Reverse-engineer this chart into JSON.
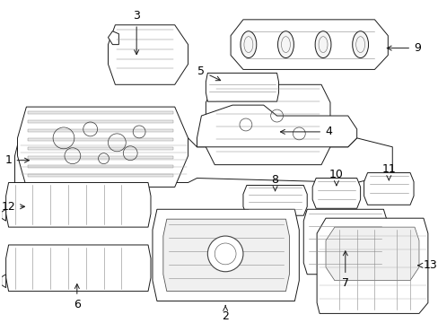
{
  "background_color": "#ffffff",
  "fig_width": 4.89,
  "fig_height": 3.6,
  "dpi": 100,
  "line_color": "#1a1a1a",
  "fill_color": "#ffffff",
  "lw": 0.7
}
